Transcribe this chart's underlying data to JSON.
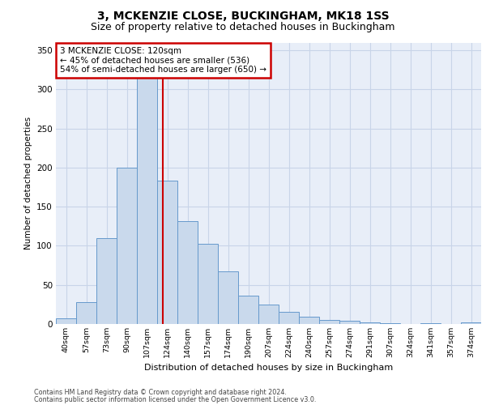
{
  "title_line1": "3, MCKENZIE CLOSE, BUCKINGHAM, MK18 1SS",
  "title_line2": "Size of property relative to detached houses in Buckingham",
  "xlabel": "Distribution of detached houses by size in Buckingham",
  "ylabel": "Number of detached properties",
  "footnote1": "Contains HM Land Registry data © Crown copyright and database right 2024.",
  "footnote2": "Contains public sector information licensed under the Open Government Licence v3.0.",
  "bar_labels": [
    "40sqm",
    "57sqm",
    "73sqm",
    "90sqm",
    "107sqm",
    "124sqm",
    "140sqm",
    "157sqm",
    "174sqm",
    "190sqm",
    "207sqm",
    "224sqm",
    "240sqm",
    "257sqm",
    "274sqm",
    "291sqm",
    "307sqm",
    "324sqm",
    "341sqm",
    "357sqm",
    "374sqm"
  ],
  "bar_values": [
    7,
    28,
    110,
    200,
    325,
    183,
    132,
    103,
    67,
    36,
    25,
    16,
    9,
    5,
    4,
    2,
    1,
    0,
    1,
    0,
    2
  ],
  "bar_color": "#c9d9ec",
  "bar_edge_color": "#6699cc",
  "property_label": "3 MCKENZIE CLOSE: 120sqm",
  "annotation_line1": "← 45% of detached houses are smaller (536)",
  "annotation_line2": "54% of semi-detached houses are larger (650) →",
  "vline_color": "#cc0000",
  "annotation_box_edge_color": "#cc0000",
  "ylim": [
    0,
    360
  ],
  "yticks": [
    0,
    50,
    100,
    150,
    200,
    250,
    300,
    350
  ],
  "grid_color": "#c8d4e8",
  "plot_bg_color": "#e8eef8",
  "fig_bg_color": "#ffffff"
}
